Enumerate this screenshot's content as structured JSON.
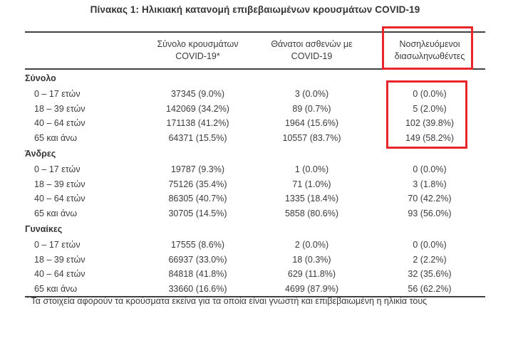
{
  "title": "Πίνακας 1: Ηλικιακή κατανομή επιβεβαιωμένων κρουσμάτων COVID-19",
  "table": {
    "col_headers": {
      "cases": "Σύνολο κρουσμάτων\nCOVID-19*",
      "deaths": "Θάνατοι ασθενών με\nCOVID-19",
      "intubated": "Νοσηλευόμενοι\nδιασωληνωθέντες"
    },
    "groups": [
      {
        "label": "Σύνολο",
        "rows": [
          {
            "age": "0 – 17 ετών",
            "cases": "37345 (9.0%)",
            "deaths": "3 (0.0%)",
            "intubated": "0 (0.0%)"
          },
          {
            "age": "18 – 39 ετών",
            "cases": "142069 (34.2%)",
            "deaths": "89 (0.7%)",
            "intubated": "5 (2.0%)"
          },
          {
            "age": "40 – 64 ετών",
            "cases": "171138 (41.2%)",
            "deaths": "1964 (15.6%)",
            "intubated": "102 (39.8%)"
          },
          {
            "age": "65 και άνω",
            "cases": "64371 (15.5%)",
            "deaths": "10557 (83.7%)",
            "intubated": "149 (58.2%)"
          }
        ]
      },
      {
        "label": "Άνδρες",
        "rows": [
          {
            "age": "0 – 17 ετών",
            "cases": "19787 (9.3%)",
            "deaths": "1 (0.0%)",
            "intubated": "0 (0.0%)"
          },
          {
            "age": "18 – 39 ετών",
            "cases": "75126 (35.4%)",
            "deaths": "71 (1.0%)",
            "intubated": "3 (1.8%)"
          },
          {
            "age": "40 – 64 ετών",
            "cases": "86305 (40.7%)",
            "deaths": "1335 (18.4%)",
            "intubated": "70 (42.2%)"
          },
          {
            "age": "65 και άνω",
            "cases": "30705 (14.5%)",
            "deaths": "5858 (80.6%)",
            "intubated": "93 (56.0%)"
          }
        ]
      },
      {
        "label": "Γυναίκες",
        "rows": [
          {
            "age": "0 – 17 ετών",
            "cases": "17555 (8.6%)",
            "deaths": "2 (0.0%)",
            "intubated": "0 (0.0%)"
          },
          {
            "age": "18 – 39 ετών",
            "cases": "66937 (33.0%)",
            "deaths": "18 (0.3%)",
            "intubated": "2 (2.2%)"
          },
          {
            "age": "40 – 64 ετών",
            "cases": "84818 (41.8%)",
            "deaths": "629 (11.8%)",
            "intubated": "32 (35.6%)"
          },
          {
            "age": "65 και άνω",
            "cases": "33660 (16.6%)",
            "deaths": "4699 (87.9%)",
            "intubated": "56 (62.2%)"
          }
        ]
      }
    ]
  },
  "footnote": {
    "marker": "*",
    "text": "Τα στοιχεία αφορούν τα κρούσματα εκείνα για τα οποία είναι γνωστή και επιβεβαιωμένη η ηλικία τους"
  },
  "colors": {
    "highlight_red": "#e8252a",
    "rule_gray": "#414141",
    "text": "#3b3b3b"
  }
}
